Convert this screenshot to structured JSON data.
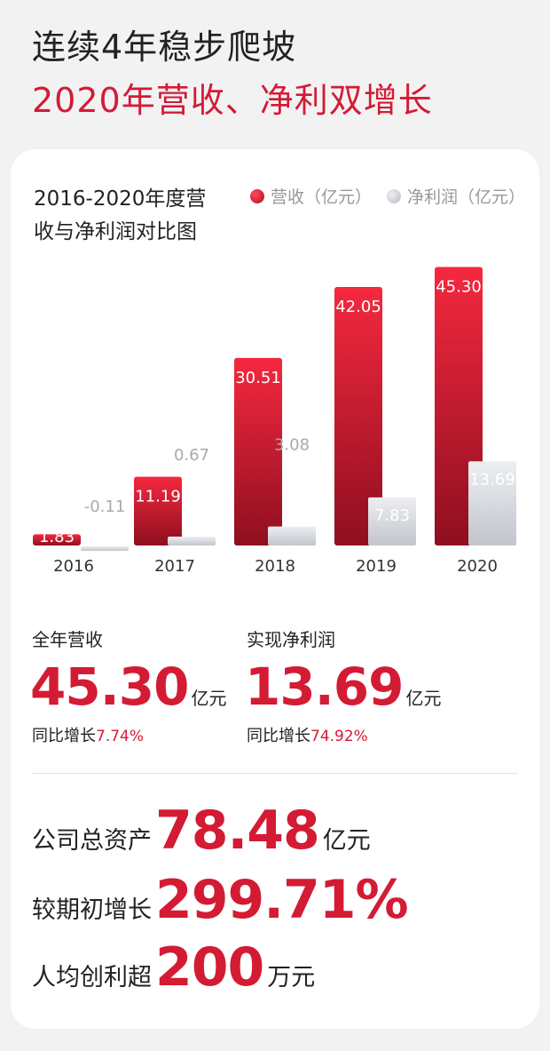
{
  "header": {
    "title_line1": "连续4年稳步爬坡",
    "title_line2": "2020年营收、净利双增长"
  },
  "chart_title": "2016-2020年度营收与净利润对比图",
  "colors": {
    "accent_red": "#d41b34",
    "revenue_top": "#f5283f",
    "revenue_bottom": "#8e0f1f",
    "net_profit_top": "#eceef2",
    "net_profit_bottom": "#c2c5cc"
  },
  "chart_data": {
    "type": "bar",
    "title": "2016-2020年度营收与净利润对比图",
    "categories": [
      "2016",
      "2017",
      "2018",
      "2019",
      "2020"
    ],
    "series": [
      {
        "name": "营收（亿元）",
        "values": [
          1.83,
          11.19,
          30.51,
          42.05,
          45.3
        ],
        "labels": [
          "1.83",
          "11.19",
          "30.51",
          "42.05",
          "45.30"
        ]
      },
      {
        "name": "净利润（亿元）",
        "values": [
          -0.11,
          0.67,
          3.08,
          7.83,
          13.69
        ],
        "labels": [
          "-0.11",
          "0.67",
          "3.08",
          "7.83",
          "13.69"
        ]
      }
    ],
    "legend": "top-right",
    "grid": false,
    "ylim": [
      -1,
      46
    ]
  },
  "summary": {
    "revenue": {
      "label": "全年营收",
      "value": "45.30",
      "unit": "亿元",
      "yoy_label": "同比增长",
      "yoy_value": "7.74%"
    },
    "net_profit": {
      "label": "实现净利润",
      "value": "13.69",
      "unit": "亿元",
      "yoy_label": "同比增长",
      "yoy_value": "74.92%"
    }
  },
  "stats": [
    {
      "label": "公司总资产",
      "value": "78.48",
      "unit": "亿元"
    },
    {
      "label": "较期初增长",
      "value": "299.71%",
      "unit": ""
    },
    {
      "label": "人均创利超",
      "value": "200",
      "unit": "万元"
    }
  ]
}
